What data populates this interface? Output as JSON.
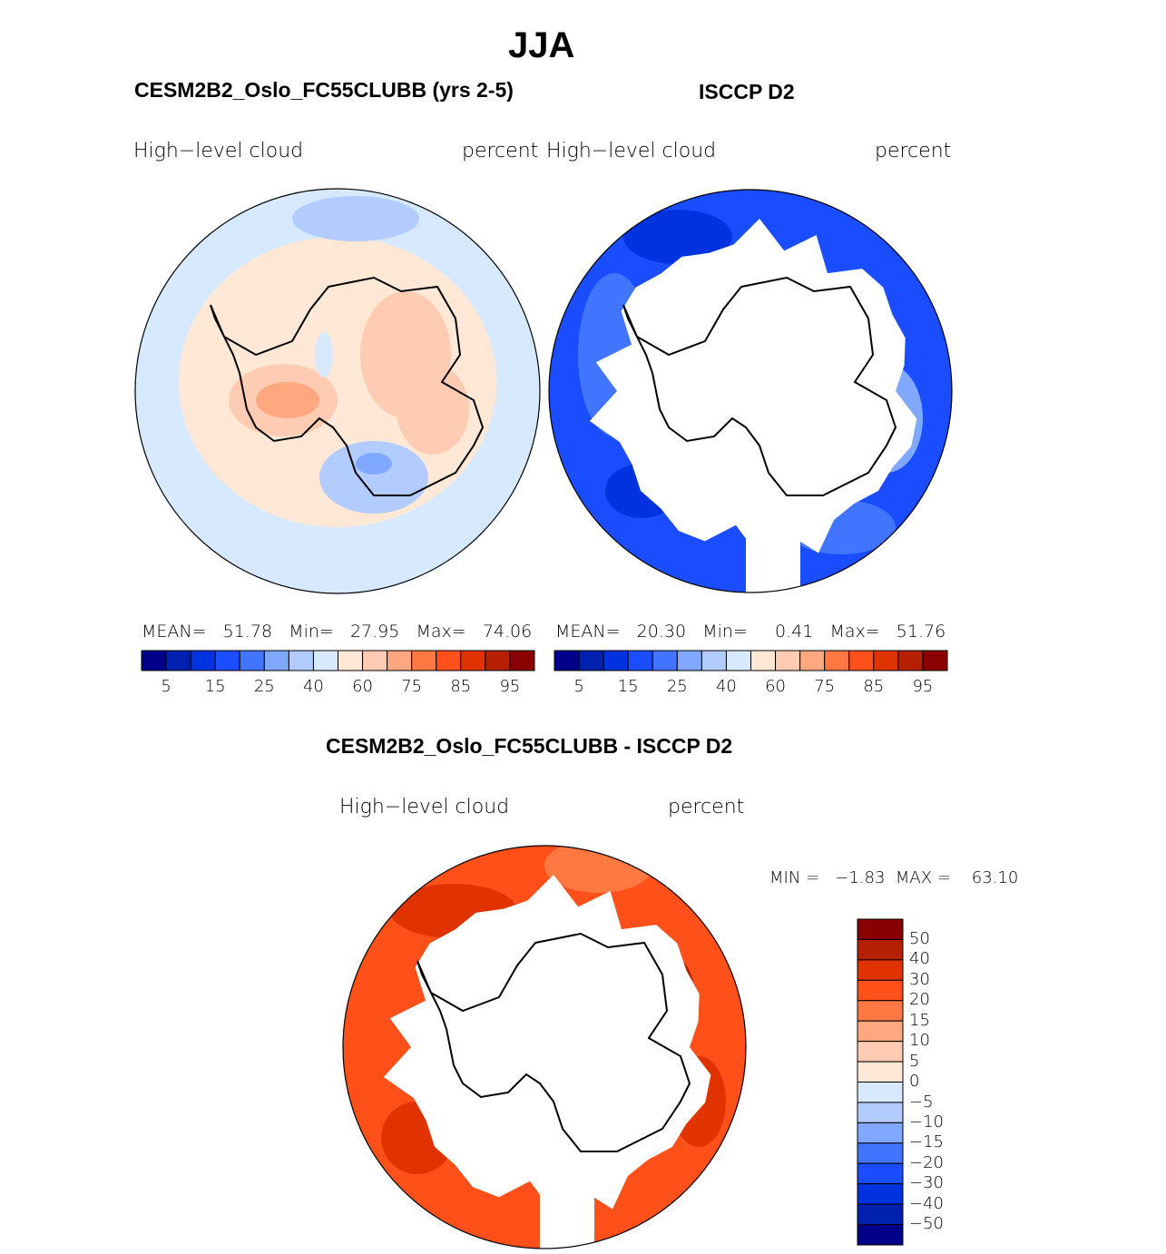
{
  "title": "JJA",
  "panels": [
    {
      "case": "CESM2B2_Oslo_FC55CLUBB (yrs 2-5)",
      "variable": "High−level  cloud",
      "units": "percent",
      "stats": {
        "mean_label": "MEAN=",
        "mean": "51.78",
        "min_label": "Min=",
        "min": "27.95",
        "max_label": "Max=",
        "max": "74.06"
      }
    },
    {
      "case": "ISCCP D2",
      "variable": "High−level  cloud",
      "units": "percent",
      "stats": {
        "mean_label": "MEAN=",
        "mean": "20.30",
        "min_label": "Min=",
        "min": "0.41",
        "max_label": "Max=",
        "max": "51.76"
      }
    },
    {
      "case": "CESM2B2_Oslo_FC55CLUBB - ISCCP D2",
      "variable": "High−level  cloud",
      "units": "percent",
      "stats": {
        "min_label": "MIN =",
        "min": "−1.83",
        "max_label": "MAX =",
        "max": "63.10"
      }
    }
  ],
  "colors": [
    "#00008a",
    "#0020b0",
    "#0033e0",
    "#1a4dff",
    "#4275ff",
    "#80a8ff",
    "#b3ccff",
    "#d6e9ff",
    "#ffe9d6",
    "#ffcbb3",
    "#ffa880",
    "#ff7842",
    "#ff501a",
    "#e03300",
    "#b52000",
    "#8a0000"
  ],
  "colorbar_labels": [
    "5",
    "15",
    "25",
    "40",
    "60",
    "75",
    "85",
    "95"
  ],
  "diff_colorbar_labels": [
    "50",
    "40",
    "30",
    "20",
    "15",
    "10",
    "5",
    "0",
    "−5",
    "−10",
    "−15",
    "−20",
    "−30",
    "−40",
    "−50"
  ]
}
